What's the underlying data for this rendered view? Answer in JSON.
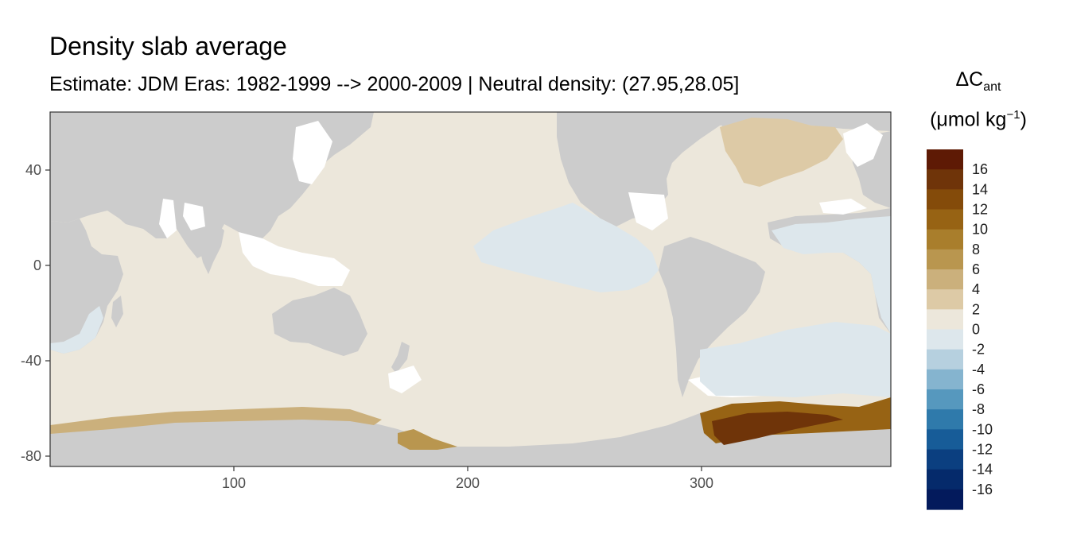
{
  "title": "Density slab average",
  "subtitle": "Estimate: JDM Eras: 1982-1999 --> 2000-2009 | Neutral density: (27.95,28.05]",
  "chart_data": {
    "type": "heatmap",
    "xlim": [
      20,
      380
    ],
    "ylim": [
      -85,
      65
    ],
    "x_ticks": [
      "100",
      "200",
      "300"
    ],
    "y_ticks": [
      "40",
      "0",
      "-40",
      "-80"
    ],
    "grid": true,
    "legend_placement": "right",
    "legend": {
      "title_symbol": "ΔC",
      "title_subscript": "ant",
      "unit_open": "(μmol kg",
      "unit_sup": "−1",
      "unit_close": ")",
      "labels": [
        "16",
        "14",
        "12",
        "10",
        "8",
        "6",
        "4",
        "2",
        "0",
        "-2",
        "-4",
        "-6",
        "-8",
        "-10",
        "-12",
        "-14",
        "-16"
      ],
      "colors": [
        "#5e1a05",
        "#6f3409",
        "#844b0a",
        "#976314",
        "#a97e2c",
        "#b9964f",
        "#cbb07c",
        "#ddcaa6",
        "#ece7db",
        "#dde7ec",
        "#b6d0df",
        "#85b4cf",
        "#5698be",
        "#2f7aab",
        "#175c98",
        "#0b3f80",
        "#052a6b",
        "#031a5c"
      ]
    },
    "colors": {
      "land": "#cccccc",
      "no_data": "#ffffff",
      "near_zero_positive": "#ece7db",
      "near_zero_negative": "#dde7ec",
      "strong_positive": "#844b0a"
    }
  }
}
